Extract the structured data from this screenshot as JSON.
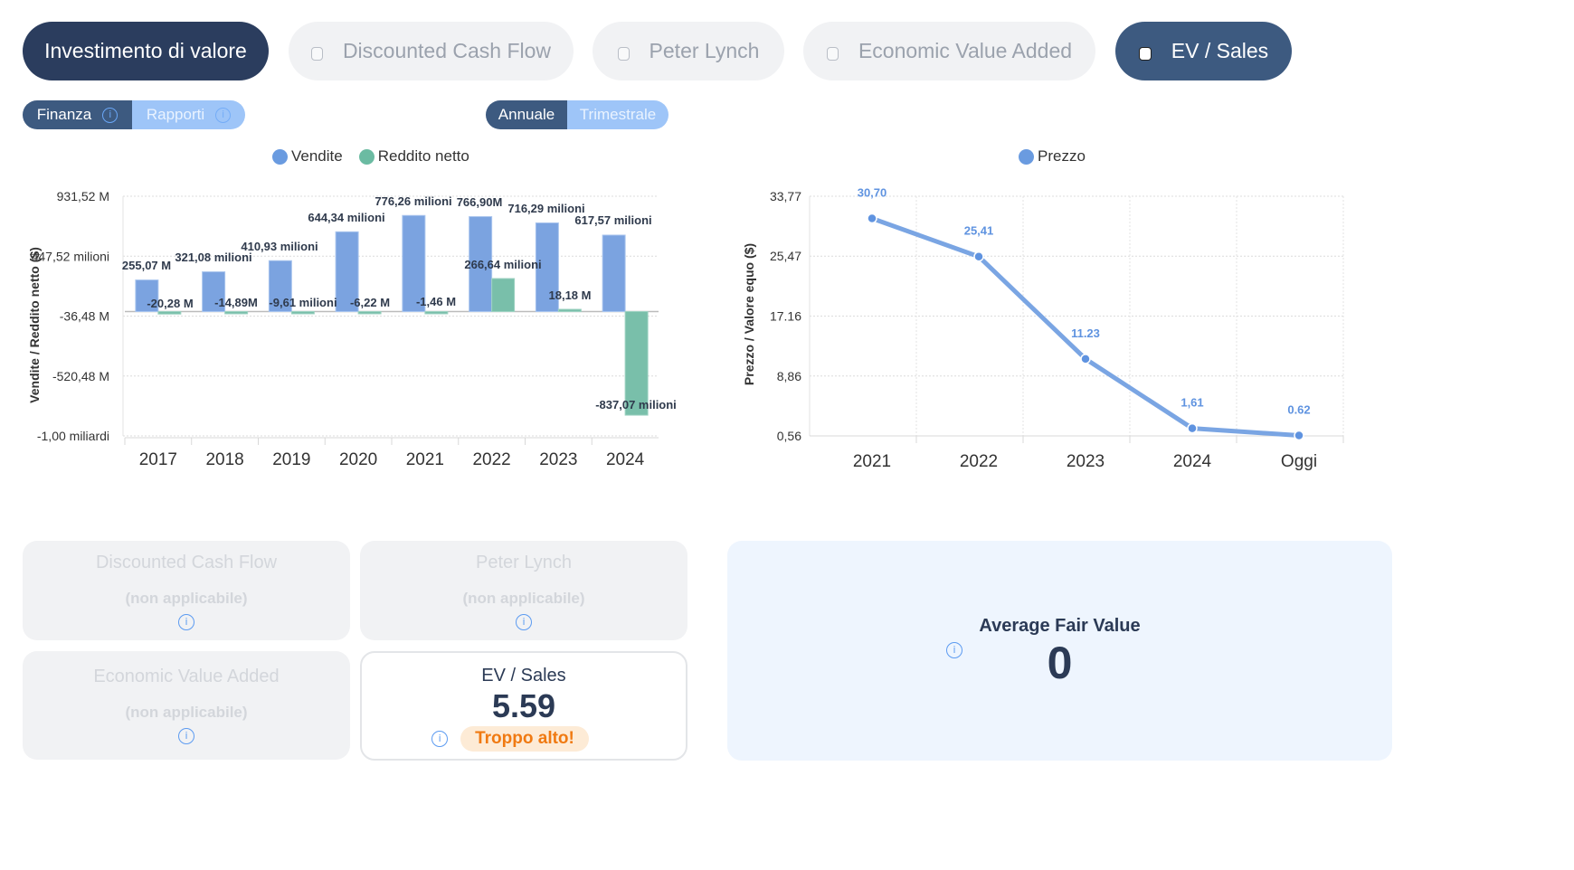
{
  "method_tabs": [
    {
      "label": "Investimento di valore",
      "state": "primary"
    },
    {
      "label": "Discounted Cash Flow",
      "state": "inactive",
      "checked": false
    },
    {
      "label": "Peter Lynch",
      "state": "inactive",
      "checked": false
    },
    {
      "label": "Economic Value Added",
      "state": "inactive",
      "checked": false
    },
    {
      "label": "EV / Sales",
      "state": "active",
      "checked": false
    }
  ],
  "data_toggle": {
    "items": [
      {
        "label": "Finanza",
        "selected": true
      },
      {
        "label": "Rapporti",
        "selected": false
      }
    ]
  },
  "period_toggle": {
    "items": [
      {
        "label": "Annuale",
        "selected": true
      },
      {
        "label": "Trimestrale",
        "selected": false
      }
    ]
  },
  "icons": {
    "info": "info-circle-icon",
    "checkbox": "checkbox-icon"
  },
  "colors": {
    "sales": "#6a9be0",
    "net_income": "#6bbba2",
    "price": "#6a9be0",
    "navy": "#2b3d5e",
    "active_tab": "#3d5a80",
    "warning": "#f07a12"
  },
  "chart_data": [
    {
      "type": "bar",
      "title": "",
      "legend": [
        "Vendite",
        "Reddito netto"
      ],
      "legend_position": "top-center",
      "ylabel": "Vendite / Reddito netto ($)",
      "xlabel": "",
      "categories": [
        "2017",
        "2018",
        "2019",
        "2020",
        "2021",
        "2022",
        "2023",
        "2024"
      ],
      "series": [
        {
          "name": "Vendite",
          "values": [
            255.07,
            321.08,
            410.93,
            644.34,
            776.26,
            766.9,
            716.29,
            617.57
          ],
          "labels": [
            "255,07 M",
            "321,08 milioni",
            "410,93 milioni",
            "644,34 milioni",
            "776,26 milioni",
            "766,90M",
            "716,29 milioni",
            "617,57 milioni"
          ]
        },
        {
          "name": "Reddito netto",
          "values": [
            -20.28,
            -14.89,
            -9.61,
            -6.22,
            -1.46,
            266.64,
            18.18,
            -837.07
          ],
          "labels": [
            "-20,28 M",
            "-14,89M",
            "-9,61 milioni",
            "-6,22 M",
            "-1,46 M",
            "266,64 milioni",
            "18,18 M",
            "-837,07 milioni"
          ]
        }
      ],
      "yticks": [
        931.52,
        447.52,
        -36.48,
        -520.48,
        -1004.48
      ],
      "ytick_labels": [
        "931,52 M",
        "447,52 milioni",
        "-36,48 M",
        "-520,48 M",
        "-1,00 miliardi"
      ],
      "ylim": [
        -1004.48,
        931.52
      ],
      "units": "milioni $",
      "grid": true
    },
    {
      "type": "line",
      "title": "",
      "legend": [
        "Prezzo"
      ],
      "legend_position": "top-center",
      "ylabel": "Prezzo / Valore equo ($)",
      "xlabel": "",
      "categories": [
        "2021",
        "2022",
        "2023",
        "2024",
        "Oggi"
      ],
      "series": [
        {
          "name": "Prezzo",
          "values": [
            30.7,
            25.41,
            11.23,
            1.61,
            0.62
          ],
          "labels": [
            "30,70",
            "25,41",
            "11.23",
            "1,61",
            "0.62"
          ]
        }
      ],
      "yticks": [
        33.77,
        25.47,
        17.16,
        8.86,
        0.56
      ],
      "ytick_labels": [
        "33,77",
        "25,47",
        "17.16",
        "8,86",
        "0,56"
      ],
      "ylim": [
        0.56,
        33.77
      ],
      "grid": true
    }
  ],
  "cards": {
    "dcf": {
      "title": "Discounted Cash Flow",
      "value": "(non applicabile)"
    },
    "lynch": {
      "title": "Peter Lynch",
      "value": "(non applicabile)"
    },
    "eva": {
      "title": "Economic Value Added",
      "value": "(non applicabile)"
    },
    "ev_sales": {
      "title": "EV / Sales",
      "value": "5.59",
      "badge": "Troppo alto!"
    },
    "average": {
      "title": "Average Fair Value",
      "value": "0"
    }
  }
}
